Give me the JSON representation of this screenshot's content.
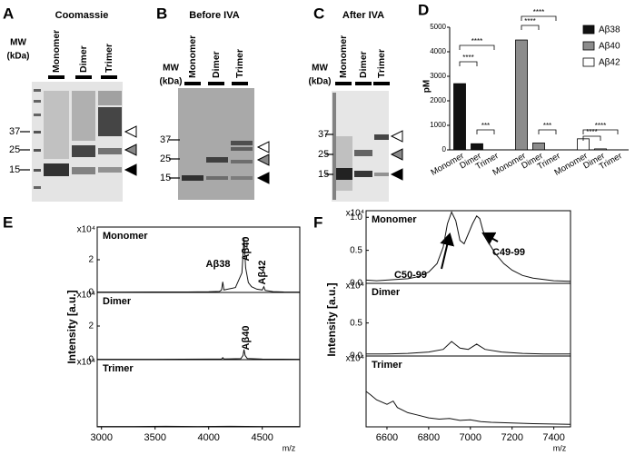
{
  "gels": [
    {
      "panel": "A",
      "title": "Coomassie",
      "lanes": [
        "Monomer",
        "Dimer",
        "Trimer"
      ],
      "mw_label": [
        "MW",
        "(kDa)"
      ],
      "mw_markers": [
        "37",
        "25",
        "15"
      ]
    },
    {
      "panel": "B",
      "title": "Before IVA",
      "lanes": [
        "Monomer",
        "Dimer",
        "Trimer"
      ],
      "mw_label": [
        "MW",
        "(kDa)"
      ],
      "mw_markers": [
        "37",
        "25",
        "15"
      ]
    },
    {
      "panel": "C",
      "title": "After IVA",
      "lanes": [
        "Monomer",
        "Dimer",
        "Trimer"
      ],
      "mw_label": [
        "MW",
        "(kDa)"
      ],
      "mw_markers": [
        "37",
        "25",
        "15"
      ]
    }
  ],
  "chart_data": [
    {
      "type": "bar",
      "panel": "D",
      "ylabel": "pM",
      "categories": [
        "Monomer",
        "Dimer",
        "Trimer"
      ],
      "series": [
        {
          "name": "Aβ38",
          "color": "#111111",
          "values": [
            2700,
            250,
            0
          ]
        },
        {
          "name": "Aβ40",
          "color": "#8c8c8c",
          "values": [
            4480,
            280,
            0
          ]
        },
        {
          "name": "Aβ42",
          "color": "#ffffff",
          "values": [
            450,
            40,
            0
          ]
        }
      ],
      "ylim": [
        0,
        5000
      ],
      "yticks": [
        0,
        1000,
        2000,
        3000,
        4000,
        5000
      ],
      "annotations": [
        "****",
        "****",
        "***",
        "****",
        "****",
        "***",
        "****",
        "****"
      ]
    },
    {
      "type": "line",
      "panel": "E",
      "ylabel": "Intensity [a.u.]",
      "title": "Monomer",
      "scale_label": "x10⁴",
      "x": [
        2960,
        3200,
        3500,
        3800,
        4000,
        4100,
        4120,
        4131,
        4142,
        4250,
        4310,
        4330,
        4345,
        4370,
        4400,
        4450,
        4500,
        4514,
        4528,
        4600,
        4700,
        4850
      ],
      "values": [
        0.02,
        0.02,
        0.03,
        0.03,
        0.04,
        0.06,
        0.15,
        0.65,
        0.15,
        0.3,
        1.2,
        3.3,
        1.5,
        0.6,
        0.35,
        0.2,
        0.15,
        0.35,
        0.12,
        0.05,
        0.03,
        0.02
      ],
      "xlim": [
        2960,
        4850
      ],
      "ylim": [
        0,
        4
      ],
      "yticks": [
        0,
        2
      ],
      "annotations": [
        "Aβ38",
        "Aβ40",
        "Aβ42"
      ]
    },
    {
      "type": "line",
      "title": "Dimer",
      "scale_label": "x10⁴",
      "x": [
        2960,
        3500,
        4000,
        4120,
        4131,
        4142,
        4300,
        4320,
        4330,
        4340,
        4360,
        4500,
        4850
      ],
      "values": [
        0.02,
        0.02,
        0.03,
        0.04,
        0.12,
        0.04,
        0.06,
        0.25,
        0.6,
        0.25,
        0.07,
        0.03,
        0.02
      ],
      "xlim": [
        2960,
        4850
      ],
      "ylim": [
        0,
        4
      ],
      "yticks": [
        0,
        2
      ],
      "annotations": [
        "Aβ40"
      ]
    },
    {
      "type": "line",
      "title": "Trimer",
      "scale_label": "x10⁴",
      "x": [
        2960,
        3300,
        3600,
        3900,
        4200,
        4500,
        4850
      ],
      "values": [
        0.02,
        0.02,
        0.03,
        0.02,
        0.03,
        0.02,
        0.02
      ],
      "xlim": [
        2960,
        4850
      ],
      "ylim": [
        0,
        4
      ],
      "yticks": [],
      "xticks": [
        3000,
        3500,
        4000,
        4500
      ],
      "xlabel": "m/z"
    },
    {
      "type": "line",
      "panel": "F",
      "ylabel": "Intensity [a.u.]",
      "title": "Monomer",
      "scale_label": "x10⁴",
      "x": [
        6500,
        6550,
        6600,
        6650,
        6700,
        6750,
        6800,
        6840,
        6870,
        6890,
        6910,
        6930,
        6950,
        6970,
        6990,
        7010,
        7030,
        7045,
        7060,
        7090,
        7120,
        7160,
        7200,
        7250,
        7300,
        7400,
        7480
      ],
      "values": [
        0.05,
        0.04,
        0.05,
        0.06,
        0.07,
        0.1,
        0.17,
        0.3,
        0.55,
        0.9,
        1.08,
        0.95,
        0.65,
        0.6,
        0.75,
        0.9,
        1.02,
        0.98,
        0.8,
        0.6,
        0.45,
        0.3,
        0.2,
        0.12,
        0.08,
        0.04,
        0.03
      ],
      "xlim": [
        6500,
        7480
      ],
      "ylim": [
        0,
        1.1
      ],
      "yticks": [
        {
          "value": 0,
          "label": "0.0"
        },
        {
          "value": 0.5,
          "label": "0.5"
        },
        {
          "value": 1,
          "label": "1.0"
        }
      ],
      "annotations": [
        "C50-99",
        "C49-99"
      ]
    },
    {
      "type": "line",
      "title": "Dimer",
      "scale_label": "x10⁴",
      "x": [
        6500,
        6600,
        6700,
        6800,
        6870,
        6910,
        6950,
        6990,
        7030,
        7070,
        7150,
        7250,
        7350,
        7480
      ],
      "values": [
        0.03,
        0.03,
        0.04,
        0.06,
        0.1,
        0.22,
        0.12,
        0.1,
        0.18,
        0.1,
        0.06,
        0.04,
        0.03,
        0.03
      ],
      "xlim": [
        6500,
        7480
      ],
      "ylim": [
        0,
        1.1
      ],
      "yticks": [
        {
          "value": 0,
          "label": "0.0"
        },
        {
          "value": 0.5,
          "label": "0.5"
        }
      ]
    },
    {
      "type": "line",
      "title": "Trimer",
      "scale_label": "x10⁴",
      "x": [
        6500,
        6520,
        6550,
        6600,
        6630,
        6650,
        6700,
        6750,
        6800,
        6850,
        6900,
        6950,
        7000,
        7050,
        7100,
        7200,
        7300,
        7480
      ],
      "values": [
        0.55,
        0.5,
        0.42,
        0.35,
        0.4,
        0.3,
        0.22,
        0.18,
        0.14,
        0.12,
        0.13,
        0.1,
        0.11,
        0.08,
        0.07,
        0.06,
        0.05,
        0.04
      ],
      "xlim": [
        6500,
        7480
      ],
      "ylim": [
        0,
        1.1
      ],
      "yticks": [],
      "xticks": [
        6600,
        6800,
        7000,
        7200,
        7400
      ],
      "xlabel": "m/z"
    }
  ]
}
